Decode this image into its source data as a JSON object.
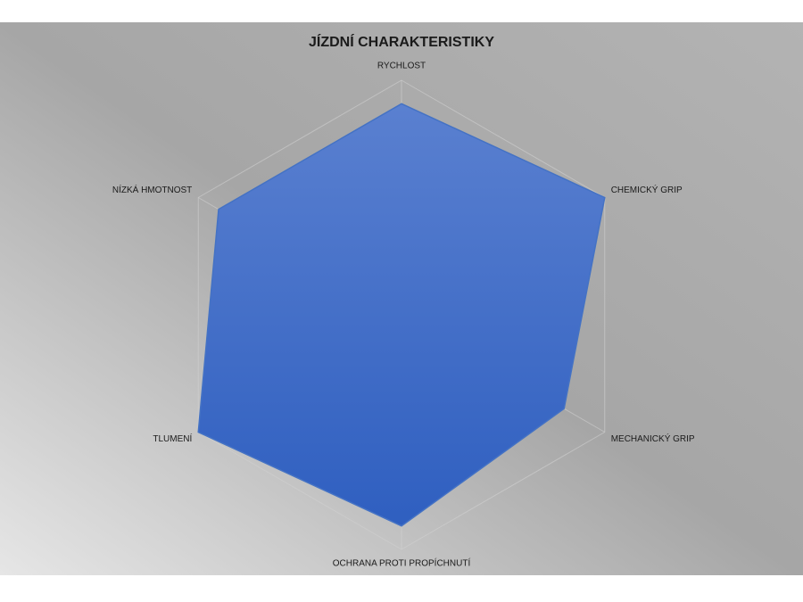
{
  "chart_data": {
    "type": "radar",
    "title": "JÍZDNÍ CHARAKTERISTIKY",
    "categories": [
      "RYCHLOST",
      "CHEMICKÝ GRIP",
      "MECHANICKÝ GRIP",
      "OCHRANA PROTI PROPÍCHNUTÍ",
      "TLUMENÍ",
      "NÍZKÁ HMOTNOST"
    ],
    "values": [
      9,
      10,
      8,
      9,
      10,
      9
    ],
    "color": "#4472c4",
    "rlim": [
      0,
      10
    ],
    "rticks": [
      0,
      2,
      4,
      6,
      8,
      10
    ],
    "grid": true
  }
}
